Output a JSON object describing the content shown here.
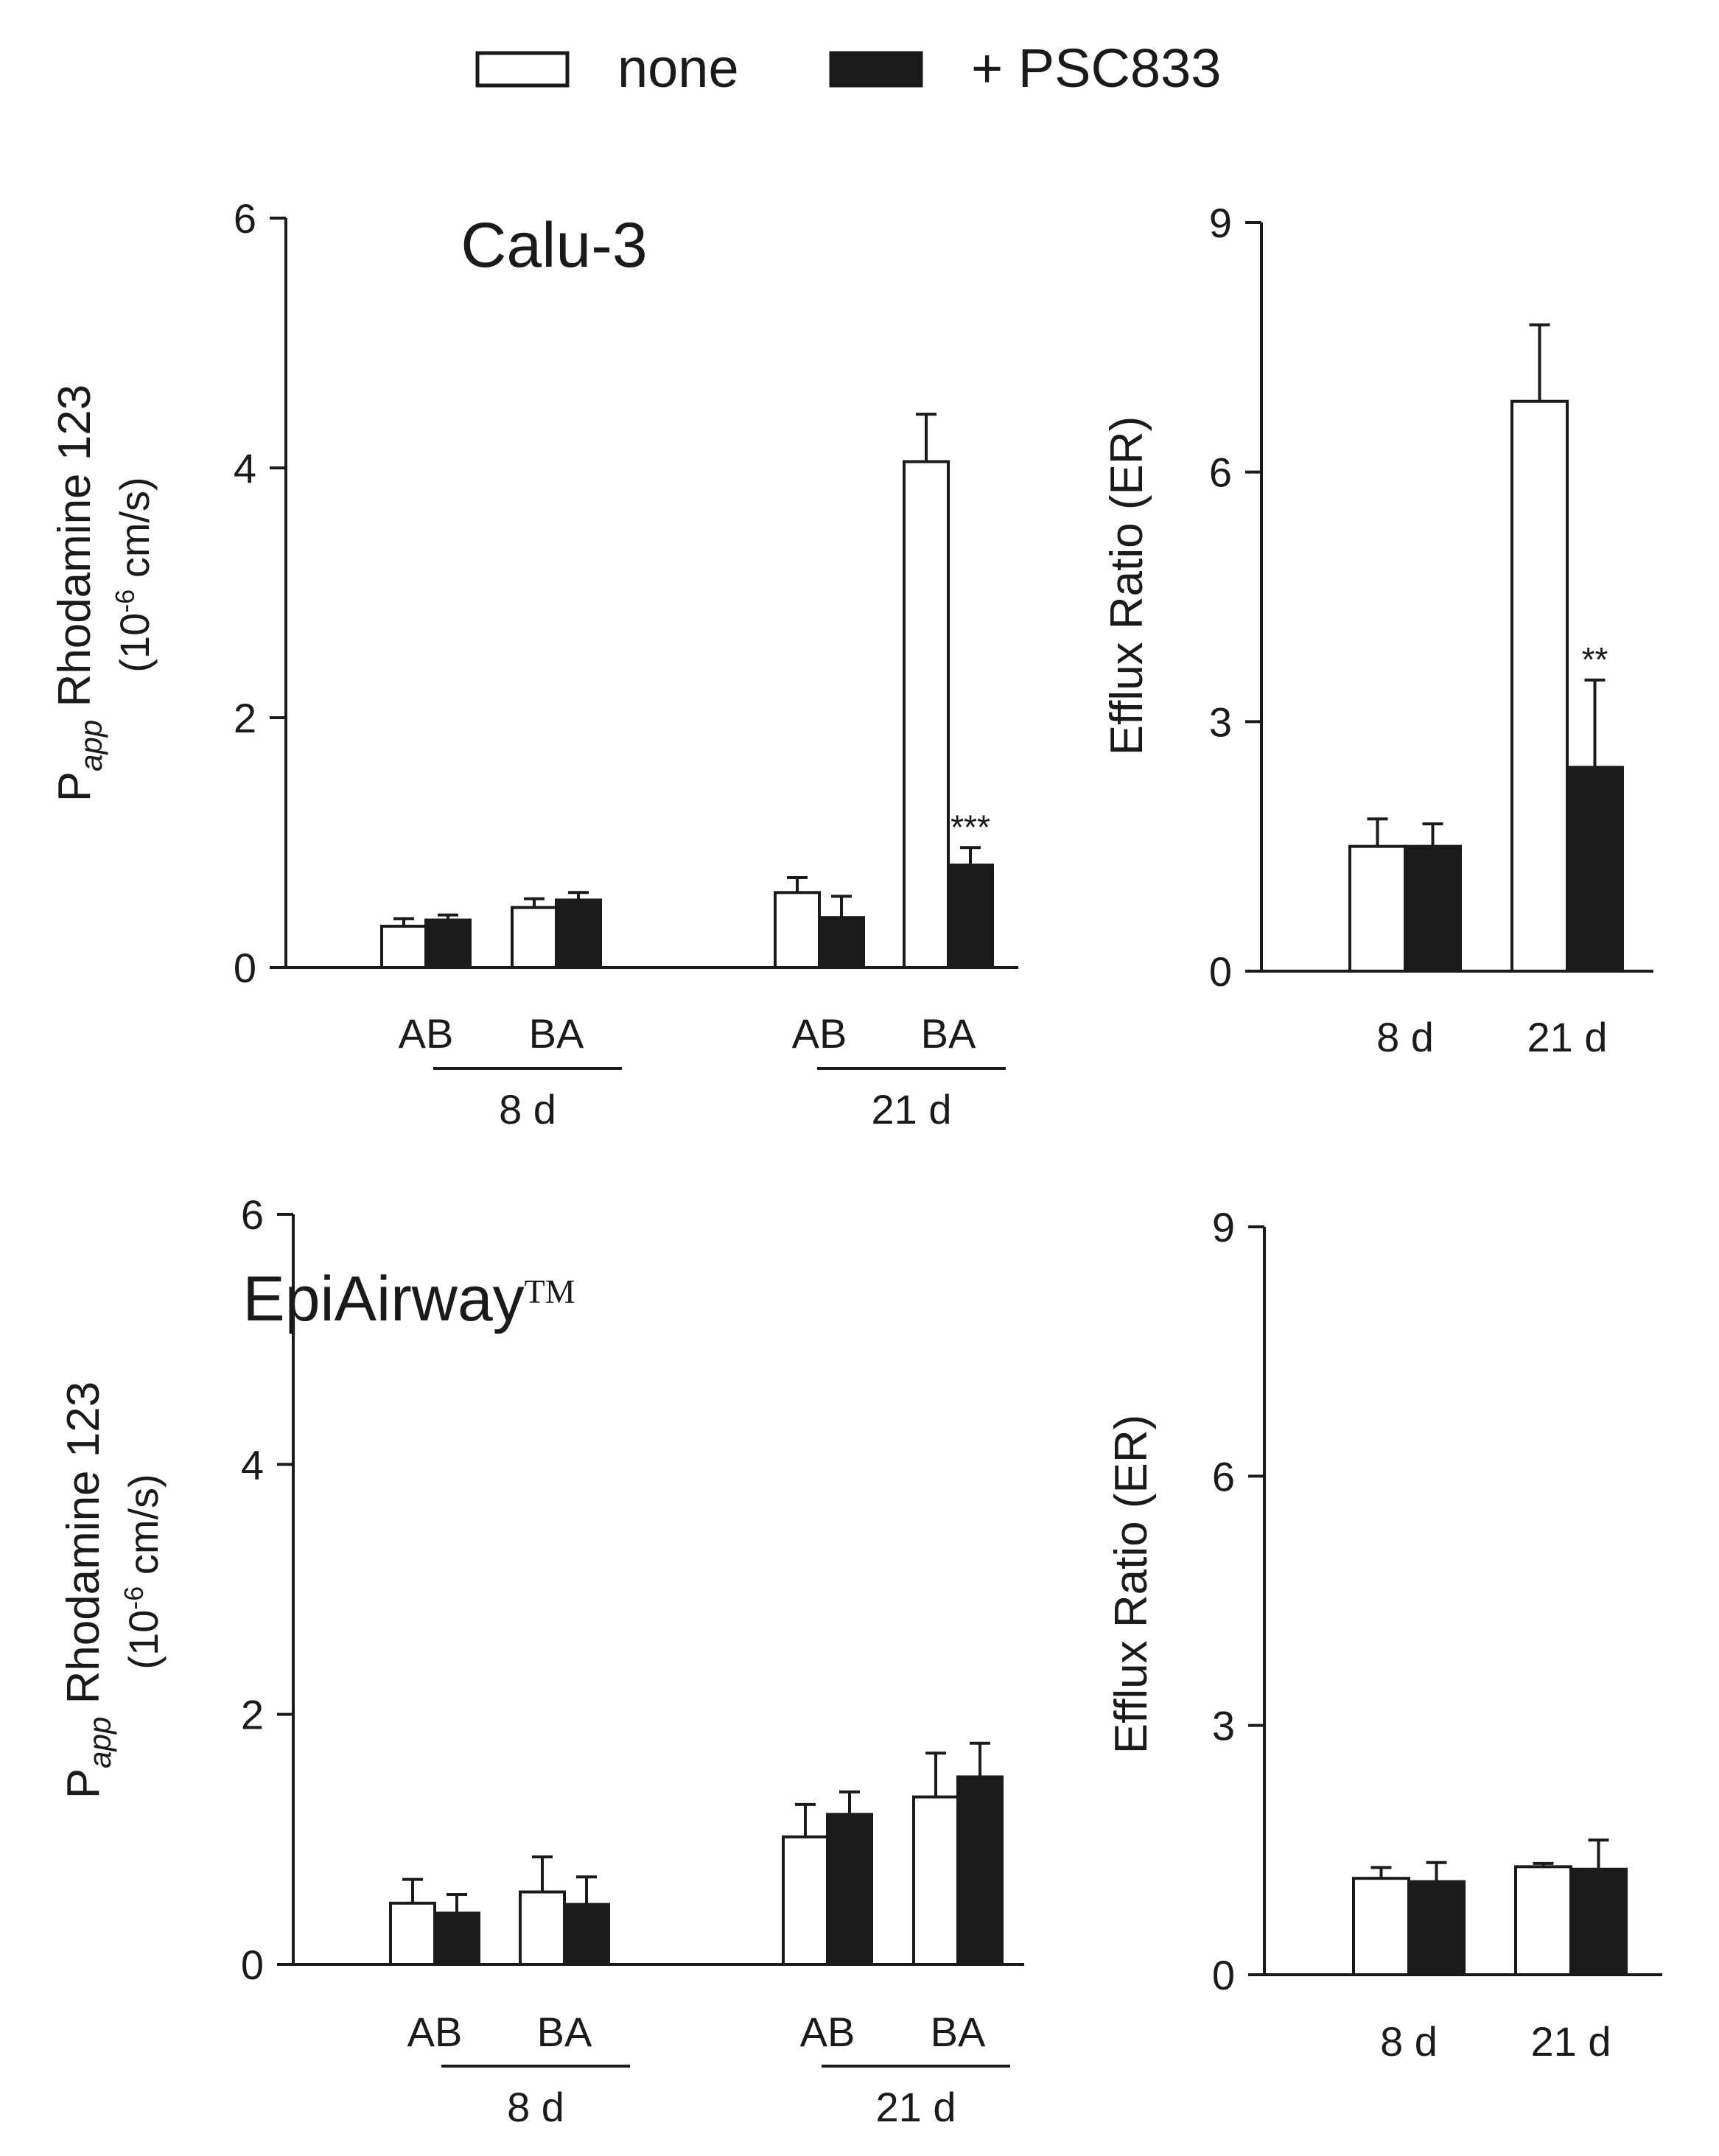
{
  "legend": {
    "items": [
      {
        "label": "none",
        "color": "#ffffff"
      },
      {
        "label": "+ PSC833",
        "color": "#1a1a1a"
      }
    ],
    "placement": "top-center"
  },
  "colors": {
    "none": "#ffffff",
    "psc": "#1a1a1a",
    "axis": "#1a1a1a"
  },
  "chart_data": [
    {
      "type": "bar",
      "panel": "calu3-papp",
      "title": "Calu-3",
      "ylabel_main": "P",
      "ylabel_sub": "app",
      "ylabel_rest": " Rhodamine 123",
      "yunit_pre": "(10",
      "yunit_exp": "-6",
      "yunit_post": " cm/s)",
      "ylim": [
        0,
        6
      ],
      "yticks": [
        0,
        2,
        4,
        6
      ],
      "group_labels": [
        "8 d",
        "21 d"
      ],
      "categories": [
        "AB",
        "BA",
        "AB",
        "BA"
      ],
      "series": [
        {
          "name": "none",
          "values": [
            0.33,
            0.48,
            0.6,
            4.05
          ],
          "errors": [
            0.06,
            0.07,
            0.12,
            0.38
          ]
        },
        {
          "name": "+ PSC833",
          "values": [
            0.38,
            0.54,
            0.4,
            0.82
          ],
          "errors": [
            0.04,
            0.06,
            0.17,
            0.14
          ]
        }
      ],
      "annotations": [
        {
          "category_index": 3,
          "series_index": 1,
          "text": "***"
        }
      ]
    },
    {
      "type": "bar",
      "panel": "calu3-er",
      "ylabel": "Efflux Ratio (ER)",
      "ylim": [
        0,
        9
      ],
      "yticks": [
        0,
        3,
        6,
        9
      ],
      "categories": [
        "8 d",
        "21 d"
      ],
      "series": [
        {
          "name": "none",
          "values": [
            1.5,
            6.85
          ],
          "errors": [
            0.33,
            0.92
          ]
        },
        {
          "name": "+ PSC833",
          "values": [
            1.5,
            2.45
          ],
          "errors": [
            0.27,
            1.05
          ]
        }
      ],
      "annotations": [
        {
          "category_index": 1,
          "series_index": 1,
          "text": "**"
        }
      ]
    },
    {
      "type": "bar",
      "panel": "epiairway-papp",
      "title": "EpiAirway",
      "title_mark": "TM",
      "ylabel_main": "P",
      "ylabel_sub": "app",
      "ylabel_rest": " Rhodamine 123",
      "yunit_pre": "(10",
      "yunit_exp": "-6",
      "yunit_post": " cm/s)",
      "ylim": [
        0,
        6
      ],
      "yticks": [
        0,
        2,
        4,
        6
      ],
      "group_labels": [
        "8 d",
        "21 d"
      ],
      "categories": [
        "AB",
        "BA",
        "AB",
        "BA"
      ],
      "series": [
        {
          "name": "none",
          "values": [
            0.49,
            0.58,
            1.02,
            1.34
          ],
          "errors": [
            0.19,
            0.28,
            0.26,
            0.35
          ]
        },
        {
          "name": "+ PSC833",
          "values": [
            0.41,
            0.48,
            1.2,
            1.5
          ],
          "errors": [
            0.15,
            0.22,
            0.18,
            0.27
          ]
        }
      ],
      "annotations": []
    },
    {
      "type": "bar",
      "panel": "epiairway-er",
      "ylabel": "Efflux Ratio (ER)",
      "ylim": [
        0,
        9
      ],
      "yticks": [
        0,
        3,
        6,
        9
      ],
      "categories": [
        "8 d",
        "21 d"
      ],
      "series": [
        {
          "name": "none",
          "values": [
            1.16,
            1.3
          ],
          "errors": [
            0.13,
            0.04
          ]
        },
        {
          "name": "+ PSC833",
          "values": [
            1.12,
            1.27
          ],
          "errors": [
            0.23,
            0.35
          ]
        }
      ],
      "annotations": []
    }
  ]
}
